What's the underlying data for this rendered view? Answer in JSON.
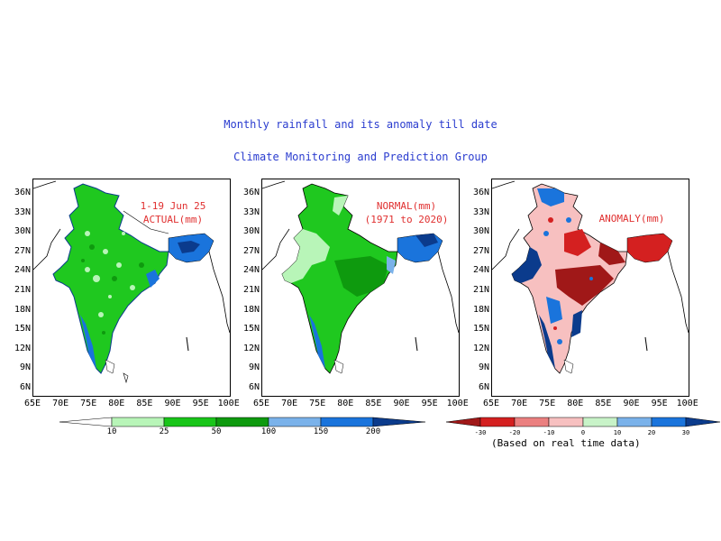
{
  "titles": {
    "line1": "Monthly rainfall and its anomaly till date",
    "line2": "Climate Monitoring and Prediction Group"
  },
  "panels": [
    {
      "label_line1": "1-19 Jun 25",
      "label_line2": "ACTUAL(mm)"
    },
    {
      "label_line1": "NORMAL(mm)",
      "label_line2": "(1971 to 2020)"
    },
    {
      "label_line1": "ANOMALY(mm)",
      "label_line2": ""
    }
  ],
  "y_ticks": [
    "36N",
    "33N",
    "30N",
    "27N",
    "24N",
    "21N",
    "18N",
    "15N",
    "12N",
    "9N",
    "6N"
  ],
  "x_ticks": [
    "65E",
    "70E",
    "75E",
    "80E",
    "85E",
    "90E",
    "95E",
    "100E"
  ],
  "rain_colorbar": {
    "labels": [
      "10",
      "25",
      "50",
      "100",
      "150",
      "200"
    ],
    "colors": [
      "#ffffff",
      "#b8f5b8",
      "#19c519",
      "#0e9a0e",
      "#7ab2ea",
      "#1a74dc",
      "#0b3b8c"
    ]
  },
  "anomaly_colorbar": {
    "labels": [
      "-30",
      "-20",
      "-10",
      "0",
      "10",
      "20",
      "30"
    ],
    "colors": [
      "#a01818",
      "#d42020",
      "#eb8080",
      "#f7c0c0",
      "#c8f3c8",
      "#7ab2ea",
      "#1a74dc",
      "#0b3b8c"
    ],
    "note": "(Based on real time data)"
  }
}
